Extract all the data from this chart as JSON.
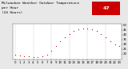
{
  "title": "Milwaukee Weather Outdoor Temperature\nper Hour\n(24 Hours)",
  "title_fontsize": 3.2,
  "background_color": "#e8e8e8",
  "plot_bg_color": "#ffffff",
  "marker_color": "#cc0000",
  "hours": [
    0,
    1,
    2,
    3,
    4,
    5,
    6,
    7,
    8,
    9,
    10,
    11,
    12,
    13,
    14,
    15,
    16,
    17,
    18,
    19,
    20,
    21,
    22,
    23
  ],
  "temps": [
    19,
    18,
    17,
    17,
    16,
    16,
    17,
    19,
    23,
    28,
    33,
    37,
    41,
    44,
    46,
    47,
    47,
    46,
    44,
    41,
    37,
    33,
    30,
    28
  ],
  "ylim": [
    14,
    52
  ],
  "ytick_values": [
    20,
    25,
    30,
    35,
    40,
    45,
    50
  ],
  "ytick_labels": [
    "20",
    "25",
    "30",
    "35",
    "40",
    "45",
    "50"
  ],
  "xtick_hours": [
    0,
    1,
    2,
    3,
    4,
    5,
    6,
    7,
    8,
    9,
    10,
    11,
    12,
    13,
    14,
    15,
    16,
    17,
    18,
    19,
    20,
    21,
    22,
    23
  ],
  "xtick_labels": [
    "0",
    "1",
    "2",
    "3",
    "4",
    "5",
    "6",
    "7",
    "8",
    "9",
    "10",
    "11",
    "12",
    "13",
    "14",
    "15",
    "16",
    "17",
    "18",
    "19",
    "20",
    "21",
    "22",
    "23"
  ],
  "grid_hours": [
    0,
    4,
    8,
    12,
    16,
    20
  ],
  "current_temp": "47",
  "tick_fontsize": 2.8,
  "highlight_bg": "#cc0000",
  "highlight_text_color": "#ffffff"
}
